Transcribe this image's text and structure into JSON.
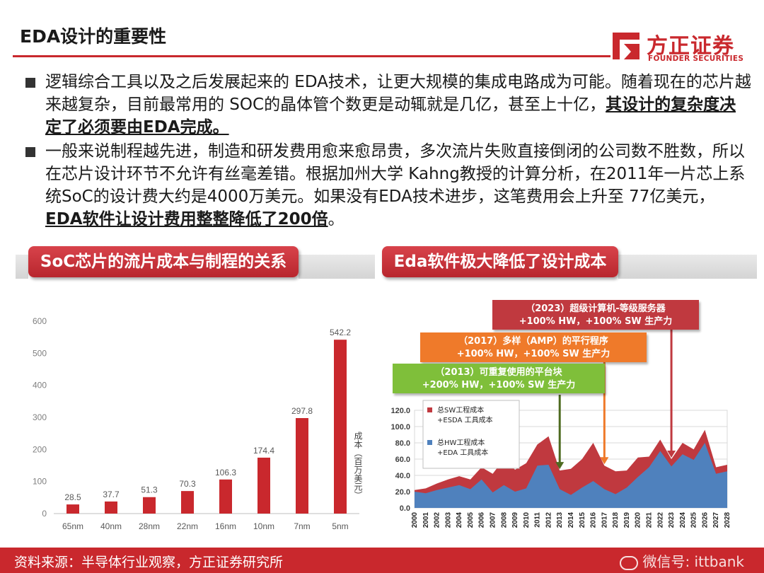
{
  "header": {
    "title": "EDA设计的重要性",
    "logo_cn": "方正证券",
    "logo_en": "FOUNDER SECURITIES"
  },
  "bullets": [
    {
      "text": "逻辑综合工具以及之后发展起来的 EDA技术，让更大规模的集成电路成为可能。随着现在的芯片越来越复杂，目前最常用的 SOC的晶体管个数更是动辄就是几亿，甚至上十亿，",
      "emphasis": "其设计的复杂度决定了必须要由EDA完成。"
    },
    {
      "text": "一般来说制程越先进，制造和研发费用愈来愈昂贵，多次流片失败直接倒闭的公司数不胜数，所以在芯片设计环节不允许有丝毫差错。根据加州大学 Kahng教授的计算分析，在2011年一片芯上系统SoC的设计费大约是4000万美元。如果没有EDA技术进步，这笔费用会上升至 77亿美元，",
      "emphasis": "EDA软件让设计费用整整降低了200倍",
      "tail": "。"
    }
  ],
  "section_left": {
    "label": "SoC芯片的流片成本与制程的关系"
  },
  "section_right": {
    "label": "Eda软件极大降低了设计成本"
  },
  "callouts": {
    "red": {
      "line1": "（2023）超级计算机-等级服务器",
      "line2": "+100% HW，+100% SW 生产力"
    },
    "orange": {
      "line1": "（2017）多样（AMP）的平行程序",
      "line2": "+100% HW，+100% SW 生产力"
    },
    "green": {
      "line1": "（2013）可重复使用的平台块",
      "line2": "+200% HW，+100% SW 生产力"
    }
  },
  "footer": {
    "source": "资料来源：半导体行业观察，方正证券研究所",
    "watermark": "微信号: ittbank"
  },
  "chart_data": [
    {
      "type": "bar",
      "categories": [
        "65nm",
        "40nm",
        "28nm",
        "22nm",
        "16nm",
        "10nm",
        "7nm",
        "5nm"
      ],
      "values": [
        28.5,
        37.7,
        51.3,
        70.3,
        106.3,
        174.4,
        297.8,
        542.2
      ],
      "title": "",
      "xlabel": "",
      "ylabel": "成本（百万美元）",
      "ylim": [
        0,
        600
      ],
      "yticks": [
        0,
        100,
        200,
        300,
        400,
        500,
        600
      ],
      "bar_color": "#c9282d",
      "grid": false,
      "data_labels": true
    },
    {
      "type": "area",
      "x": [
        "2000",
        "2001",
        "2002",
        "2003",
        "2004",
        "2005",
        "2006",
        "2007",
        "2008",
        "2009",
        "2010",
        "2011",
        "2012",
        "2013",
        "2014",
        "2015",
        "2016",
        "2017",
        "2018",
        "2019",
        "2020",
        "2021",
        "2022",
        "2023",
        "2024",
        "2025",
        "2026",
        "2027",
        "2028"
      ],
      "series": [
        {
          "name": "总SW工程成本 +ESDA 工具成本",
          "color": "#c0393f",
          "values": [
            22,
            24,
            30,
            35,
            39,
            35,
            50,
            42,
            60,
            47,
            55,
            78,
            88,
            46,
            48,
            60,
            80,
            52,
            45,
            46,
            62,
            63,
            84,
            60,
            80,
            72,
            96,
            50,
            53
          ]
        },
        {
          "name": "总HW工程成本 +EDA 工具成本",
          "color": "#4f81bd",
          "values": [
            20,
            18,
            22,
            25,
            28,
            23,
            35,
            19,
            28,
            20,
            24,
            52,
            53,
            23,
            16,
            25,
            33,
            23,
            17,
            25,
            38,
            50,
            70,
            51,
            66,
            59,
            80,
            42,
            45
          ]
        }
      ],
      "ylim": [
        0,
        120
      ],
      "yticks": [
        0.0,
        20.0,
        40.0,
        60.0,
        80.0,
        100.0,
        120.0
      ],
      "legend_position": "top-left",
      "grid": true
    }
  ]
}
